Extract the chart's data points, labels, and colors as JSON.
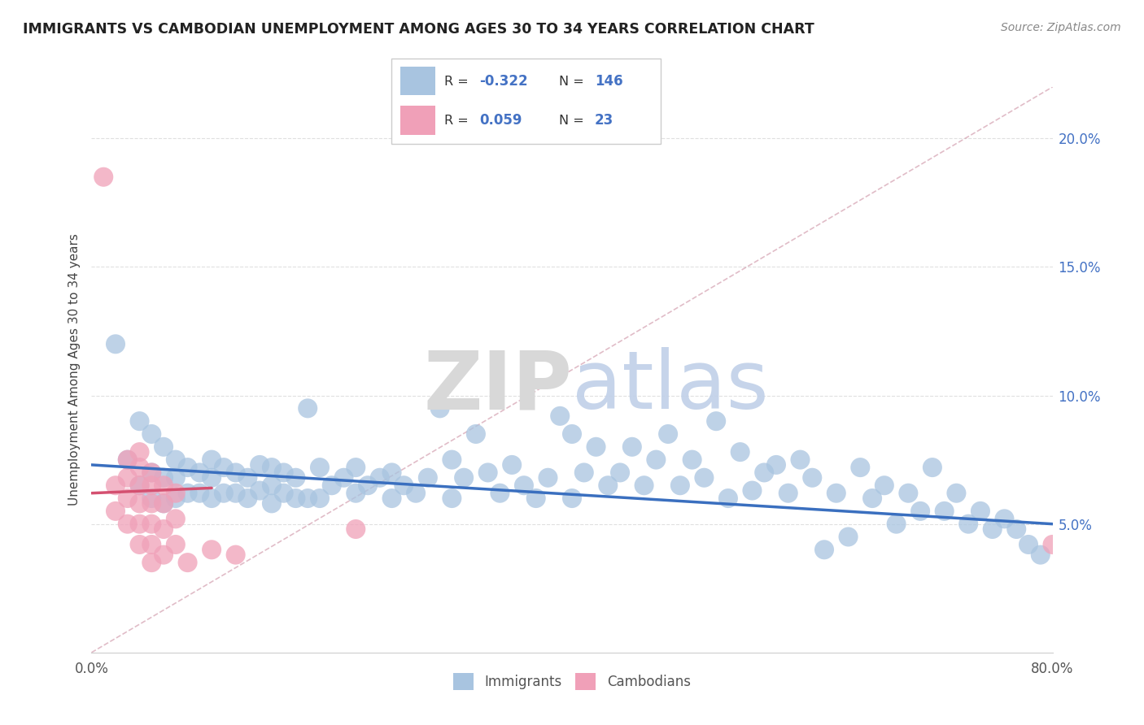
{
  "title": "IMMIGRANTS VS CAMBODIAN UNEMPLOYMENT AMONG AGES 30 TO 34 YEARS CORRELATION CHART",
  "source": "Source: ZipAtlas.com",
  "ylabel": "Unemployment Among Ages 30 to 34 years",
  "xlim": [
    0.0,
    0.8
  ],
  "ylim": [
    0.0,
    0.22
  ],
  "xticks": [
    0.0,
    0.1,
    0.2,
    0.3,
    0.4,
    0.5,
    0.6,
    0.7,
    0.8
  ],
  "xticklabels": [
    "0.0%",
    "",
    "",
    "",
    "",
    "",
    "",
    "",
    "80.0%"
  ],
  "yticks_right": [
    0.05,
    0.1,
    0.15,
    0.2
  ],
  "ytick_labels_right": [
    "5.0%",
    "10.0%",
    "15.0%",
    "20.0%"
  ],
  "legend_immigrants_R": "-0.322",
  "legend_immigrants_N": "146",
  "legend_cambodians_R": "0.059",
  "legend_cambodians_N": "23",
  "immigrants_color": "#a8c4e0",
  "cambodians_color": "#f0a0b8",
  "immigrants_line_color": "#3a6fbf",
  "cambodians_line_color": "#d45070",
  "dashed_line_color": "#d4a0b0",
  "grid_color": "#e0e0e0",
  "imm_line_x0": 0.0,
  "imm_line_x1": 0.8,
  "imm_line_y0": 0.073,
  "imm_line_y1": 0.05,
  "cam_line_x0": 0.0,
  "cam_line_x1": 0.1,
  "cam_line_y0": 0.062,
  "cam_line_y1": 0.064,
  "dash_line_x0": 0.0,
  "dash_line_x1": 0.8,
  "dash_line_y0": 0.0,
  "dash_line_y1": 0.22,
  "immigrants_x": [
    0.02,
    0.03,
    0.04,
    0.04,
    0.05,
    0.05,
    0.05,
    0.06,
    0.06,
    0.06,
    0.07,
    0.07,
    0.07,
    0.08,
    0.08,
    0.09,
    0.09,
    0.1,
    0.1,
    0.1,
    0.11,
    0.11,
    0.12,
    0.12,
    0.13,
    0.13,
    0.14,
    0.14,
    0.15,
    0.15,
    0.15,
    0.16,
    0.16,
    0.17,
    0.17,
    0.18,
    0.18,
    0.19,
    0.19,
    0.2,
    0.21,
    0.22,
    0.22,
    0.23,
    0.24,
    0.25,
    0.25,
    0.26,
    0.27,
    0.28,
    0.29,
    0.3,
    0.3,
    0.31,
    0.32,
    0.33,
    0.34,
    0.35,
    0.36,
    0.37,
    0.38,
    0.39,
    0.4,
    0.4,
    0.41,
    0.42,
    0.43,
    0.44,
    0.45,
    0.46,
    0.47,
    0.48,
    0.49,
    0.5,
    0.51,
    0.52,
    0.53,
    0.54,
    0.55,
    0.56,
    0.57,
    0.58,
    0.59,
    0.6,
    0.61,
    0.62,
    0.63,
    0.64,
    0.65,
    0.66,
    0.67,
    0.68,
    0.69,
    0.7,
    0.71,
    0.72,
    0.73,
    0.74,
    0.75,
    0.76,
    0.77,
    0.78,
    0.79
  ],
  "immigrants_y": [
    0.12,
    0.075,
    0.09,
    0.065,
    0.085,
    0.07,
    0.06,
    0.08,
    0.068,
    0.058,
    0.075,
    0.068,
    0.06,
    0.072,
    0.062,
    0.07,
    0.062,
    0.075,
    0.068,
    0.06,
    0.072,
    0.062,
    0.07,
    0.062,
    0.068,
    0.06,
    0.073,
    0.063,
    0.072,
    0.065,
    0.058,
    0.07,
    0.062,
    0.068,
    0.06,
    0.095,
    0.06,
    0.072,
    0.06,
    0.065,
    0.068,
    0.072,
    0.062,
    0.065,
    0.068,
    0.07,
    0.06,
    0.065,
    0.062,
    0.068,
    0.095,
    0.075,
    0.06,
    0.068,
    0.085,
    0.07,
    0.062,
    0.073,
    0.065,
    0.06,
    0.068,
    0.092,
    0.085,
    0.06,
    0.07,
    0.08,
    0.065,
    0.07,
    0.08,
    0.065,
    0.075,
    0.085,
    0.065,
    0.075,
    0.068,
    0.09,
    0.06,
    0.078,
    0.063,
    0.07,
    0.073,
    0.062,
    0.075,
    0.068,
    0.04,
    0.062,
    0.045,
    0.072,
    0.06,
    0.065,
    0.05,
    0.062,
    0.055,
    0.072,
    0.055,
    0.062,
    0.05,
    0.055,
    0.048,
    0.052,
    0.048,
    0.042,
    0.038
  ],
  "cambodians_x": [
    0.01,
    0.02,
    0.02,
    0.03,
    0.03,
    0.03,
    0.03,
    0.04,
    0.04,
    0.04,
    0.04,
    0.04,
    0.04,
    0.05,
    0.05,
    0.05,
    0.05,
    0.05,
    0.05,
    0.06,
    0.06,
    0.06,
    0.06,
    0.07,
    0.07,
    0.07,
    0.08,
    0.1,
    0.12,
    0.22,
    0.8
  ],
  "cambodians_y": [
    0.185,
    0.065,
    0.055,
    0.075,
    0.068,
    0.06,
    0.05,
    0.078,
    0.072,
    0.065,
    0.058,
    0.05,
    0.042,
    0.07,
    0.065,
    0.058,
    0.05,
    0.042,
    0.035,
    0.065,
    0.058,
    0.048,
    0.038,
    0.062,
    0.052,
    0.042,
    0.035,
    0.04,
    0.038,
    0.048,
    0.042
  ]
}
